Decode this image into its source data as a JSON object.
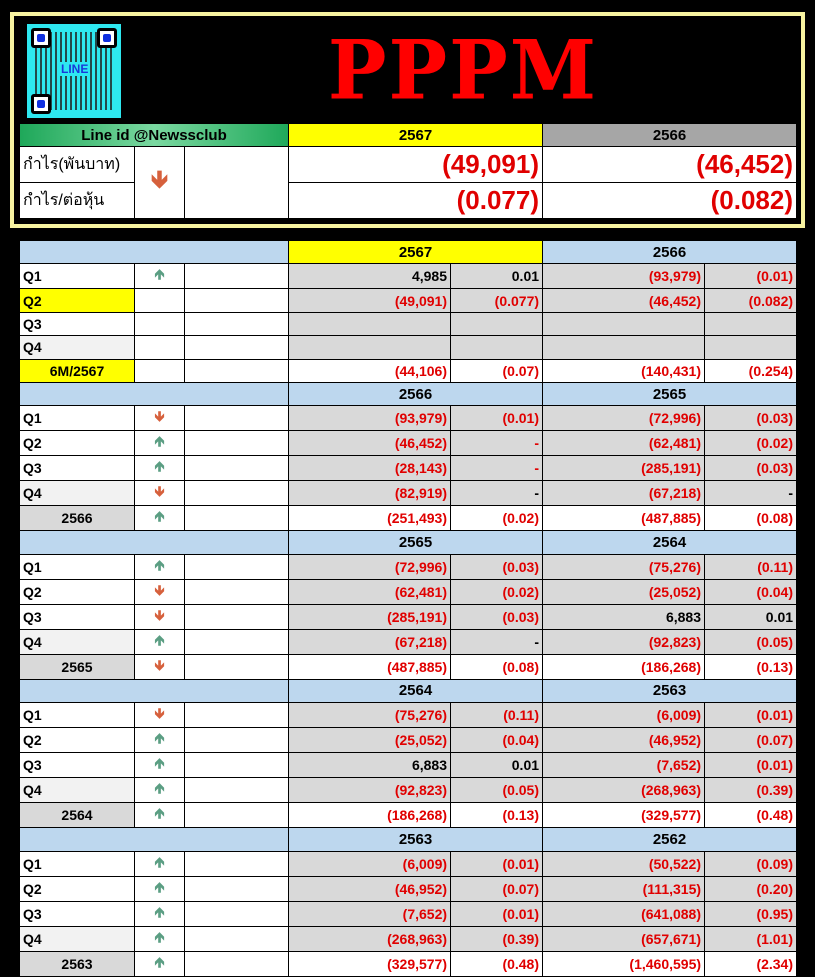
{
  "header": {
    "title": "PPPM",
    "logo_text": "LINE",
    "line_id": "Line id @Newssclub",
    "year_current": "2567",
    "year_previous": "2566",
    "rows": [
      {
        "label": "กำไร(พันบาท)",
        "current": "(49,091)",
        "previous": "(46,452)"
      },
      {
        "label": "กำไร/ต่อหุ้น",
        "current": "(0.077)",
        "previous": "(0.082)"
      }
    ],
    "trend": "down"
  },
  "colors": {
    "negative": "#e00000",
    "up_arrow": "#5b9e83",
    "down_arrow": "#d6603c",
    "highlight": "#ffff00",
    "section_header": "#bdd7ee"
  },
  "sections": [
    {
      "years": [
        "2567",
        "2566"
      ],
      "highlight_first": true,
      "rows": [
        {
          "label": "Q1",
          "arrow": "up",
          "v1": "4,985",
          "e1": "0.01",
          "v2": "(93,979)",
          "e2": "(0.01)"
        },
        {
          "label": "Q2",
          "label_highlight": true,
          "arrow": "",
          "v1": "(49,091)",
          "e1": "(0.077)",
          "v2": "(46,452)",
          "e2": "(0.082)"
        },
        {
          "label": "Q3",
          "arrow": "",
          "v1": "",
          "e1": "",
          "v2": "",
          "e2": ""
        },
        {
          "label": "Q4",
          "arrow": "",
          "v1": "",
          "e1": "",
          "v2": "",
          "e2": ""
        },
        {
          "label": "6M/2567",
          "label_highlight": true,
          "summary": true,
          "arrow": "",
          "v1": "(44,106)",
          "e1": "(0.07)",
          "v2": "(140,431)",
          "e2": "(0.254)"
        }
      ]
    },
    {
      "years": [
        "2566",
        "2565"
      ],
      "rows": [
        {
          "label": "Q1",
          "arrow": "down",
          "v1": "(93,979)",
          "e1": "(0.01)",
          "v2": "(72,996)",
          "e2": "(0.03)"
        },
        {
          "label": "Q2",
          "arrow": "up",
          "v1": "(46,452)",
          "e1": "-",
          "e1_red": true,
          "v2": "(62,481)",
          "e2": "(0.02)"
        },
        {
          "label": "Q3",
          "arrow": "up",
          "v1": "(28,143)",
          "e1": "-",
          "e1_red": true,
          "v2": "(285,191)",
          "e2": "(0.03)"
        },
        {
          "label": "Q4",
          "arrow": "down",
          "v1": "(82,919)",
          "e1": "-",
          "v2": "(67,218)",
          "e2": "-"
        },
        {
          "label": "2566",
          "summary": true,
          "arrow": "up",
          "v1": "(251,493)",
          "e1": "(0.02)",
          "v2": "(487,885)",
          "e2": "(0.08)"
        }
      ]
    },
    {
      "years": [
        "2565",
        "2564"
      ],
      "rows": [
        {
          "label": "Q1",
          "arrow": "up",
          "v1": "(72,996)",
          "e1": "(0.03)",
          "v2": "(75,276)",
          "e2": "(0.11)"
        },
        {
          "label": "Q2",
          "arrow": "down",
          "v1": "(62,481)",
          "e1": "(0.02)",
          "v2": "(25,052)",
          "e2": "(0.04)"
        },
        {
          "label": "Q3",
          "arrow": "down",
          "v1": "(285,191)",
          "e1": "(0.03)",
          "v2": "6,883",
          "e2": "0.01"
        },
        {
          "label": "Q4",
          "arrow": "up",
          "v1": "(67,218)",
          "e1": "-",
          "v2": "(92,823)",
          "e2": "(0.05)"
        },
        {
          "label": "2565",
          "summary": true,
          "arrow": "down",
          "v1": "(487,885)",
          "e1": "(0.08)",
          "v2": "(186,268)",
          "e2": "(0.13)"
        }
      ]
    },
    {
      "years": [
        "2564",
        "2563"
      ],
      "rows": [
        {
          "label": "Q1",
          "arrow": "down",
          "v1": "(75,276)",
          "e1": "(0.11)",
          "v2": "(6,009)",
          "e2": "(0.01)"
        },
        {
          "label": "Q2",
          "arrow": "up",
          "v1": "(25,052)",
          "e1": "(0.04)",
          "v2": "(46,952)",
          "e2": "(0.07)"
        },
        {
          "label": "Q3",
          "arrow": "up",
          "v1": "6,883",
          "e1": "0.01",
          "v2": "(7,652)",
          "e2": "(0.01)"
        },
        {
          "label": "Q4",
          "arrow": "up",
          "v1": "(92,823)",
          "e1": "(0.05)",
          "v2": "(268,963)",
          "e2": "(0.39)"
        },
        {
          "label": "2564",
          "summary": true,
          "arrow": "up",
          "v1": "(186,268)",
          "e1": "(0.13)",
          "v2": "(329,577)",
          "e2": "(0.48)"
        }
      ]
    },
    {
      "years": [
        "2563",
        "2562"
      ],
      "rows": [
        {
          "label": "Q1",
          "arrow": "up",
          "v1": "(6,009)",
          "e1": "(0.01)",
          "v2": "(50,522)",
          "e2": "(0.09)"
        },
        {
          "label": "Q2",
          "arrow": "up",
          "v1": "(46,952)",
          "e1": "(0.07)",
          "v2": "(111,315)",
          "e2": "(0.20)"
        },
        {
          "label": "Q3",
          "arrow": "up",
          "v1": "(7,652)",
          "e1": "(0.01)",
          "v2": "(641,088)",
          "e2": "(0.95)"
        },
        {
          "label": "Q4",
          "arrow": "up",
          "v1": "(268,963)",
          "e1": "(0.39)",
          "v2": "(657,671)",
          "e2": "(1.01)"
        },
        {
          "label": "2563",
          "summary": true,
          "arrow": "up",
          "v1": "(329,577)",
          "e1": "(0.48)",
          "v2": "(1,460,595)",
          "e2": "(2.34)"
        }
      ]
    }
  ]
}
